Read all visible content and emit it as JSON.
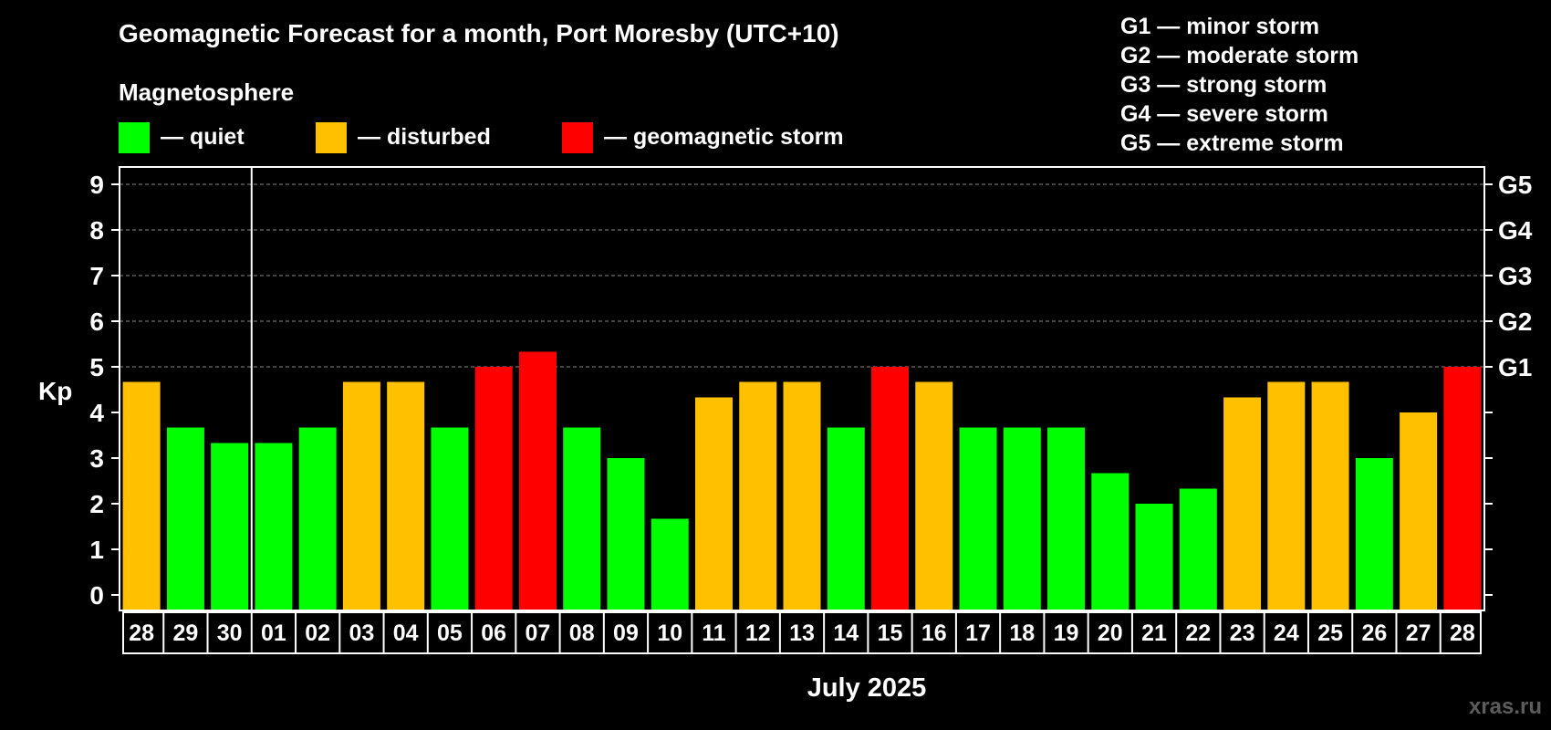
{
  "chart_data": {
    "type": "bar",
    "title": "Geomagnetic Forecast for a month, Port Moresby (UTC+10)",
    "subtitle": "Magnetosphere",
    "xlabel": "July 2025",
    "ylabel": "Kp",
    "ylim": [
      0,
      9
    ],
    "yticks": [
      "0",
      "1",
      "2",
      "3",
      "4",
      "5",
      "6",
      "7",
      "8",
      "9"
    ],
    "right_ticks": [
      {
        "value": 5,
        "label": "G1"
      },
      {
        "value": 6,
        "label": "G2"
      },
      {
        "value": 7,
        "label": "G3"
      },
      {
        "value": 8,
        "label": "G4"
      },
      {
        "value": 9,
        "label": "G5"
      }
    ],
    "grid": "dashed, Kp 5 to 9",
    "month_divider_after": "30",
    "categories": [
      "28",
      "29",
      "30",
      "01",
      "02",
      "03",
      "04",
      "05",
      "06",
      "07",
      "08",
      "09",
      "10",
      "11",
      "12",
      "13",
      "14",
      "15",
      "16",
      "17",
      "18",
      "19",
      "20",
      "21",
      "22",
      "23",
      "24",
      "25",
      "26",
      "27",
      "28"
    ],
    "values": [
      4.67,
      3.67,
      3.33,
      3.33,
      3.67,
      4.67,
      4.67,
      3.67,
      5.0,
      5.33,
      3.67,
      3.0,
      1.67,
      4.33,
      4.67,
      4.67,
      3.67,
      5.0,
      4.67,
      3.67,
      3.67,
      3.67,
      2.67,
      2.0,
      2.33,
      4.33,
      4.67,
      4.67,
      3.0,
      4.0,
      5.0
    ],
    "legend": [
      {
        "key": "quiet",
        "label": "— quiet",
        "color": "#00ff00"
      },
      {
        "key": "disturbed",
        "label": "— disturbed",
        "color": "#ffc000"
      },
      {
        "key": "storm",
        "label": "— geomagnetic storm",
        "color": "#ff0000"
      }
    ],
    "storm_scale": [
      "G1 — minor storm",
      "G2 — moderate storm",
      "G3 — strong storm",
      "G4 — severe storm",
      "G5 — extreme storm"
    ],
    "watermark": "xras.ru"
  }
}
